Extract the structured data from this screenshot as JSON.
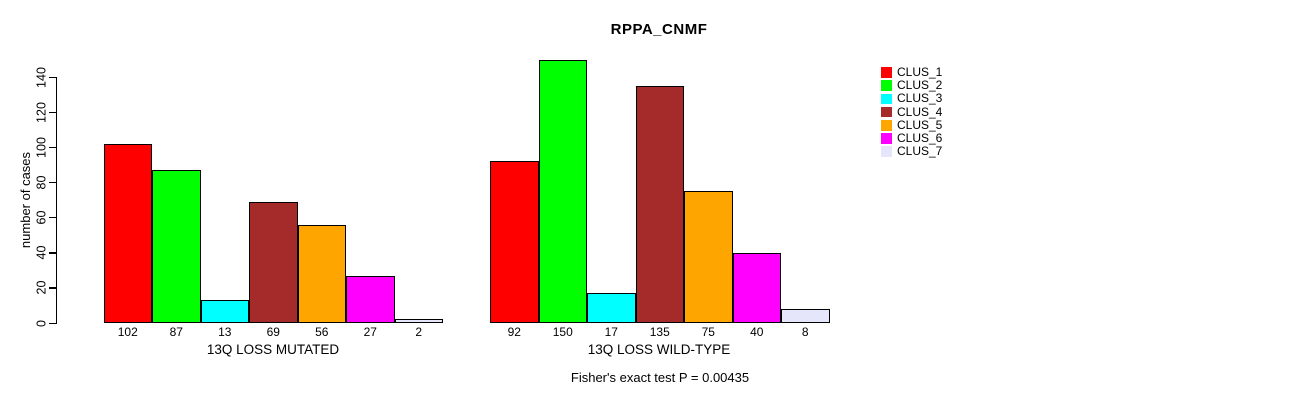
{
  "chart_data": {
    "type": "bar",
    "title": "RPPA_CNMF",
    "ylabel": "number of cases",
    "ylim": [
      0,
      150
    ],
    "yticks": [
      0,
      20,
      40,
      60,
      80,
      100,
      120,
      140
    ],
    "grid": false,
    "legend_position": "right-outside",
    "series": [
      {
        "name": "CLUS_1",
        "color": "#FF0000"
      },
      {
        "name": "CLUS_2",
        "color": "#00FF00"
      },
      {
        "name": "CLUS_3",
        "color": "#00FFFF"
      },
      {
        "name": "CLUS_4",
        "color": "#A52A2A"
      },
      {
        "name": "CLUS_5",
        "color": "#FFA500"
      },
      {
        "name": "CLUS_6",
        "color": "#FF00FF"
      },
      {
        "name": "CLUS_7",
        "color": "#E6E6FA"
      }
    ],
    "groups": [
      {
        "xlabel": "13Q LOSS MUTATED",
        "values": [
          102,
          87,
          13,
          69,
          56,
          27,
          2
        ],
        "bar_labels": [
          "102",
          "87",
          "13",
          "69",
          "56",
          "27",
          "2"
        ]
      },
      {
        "xlabel": "13Q LOSS WILD-TYPE",
        "values": [
          92,
          150,
          17,
          135,
          75,
          40,
          8
        ],
        "bar_labels": [
          "92",
          "150",
          "17",
          "135",
          "75",
          "40",
          "8"
        ]
      }
    ],
    "footer": "Fisher's exact test P = 0.00435"
  }
}
